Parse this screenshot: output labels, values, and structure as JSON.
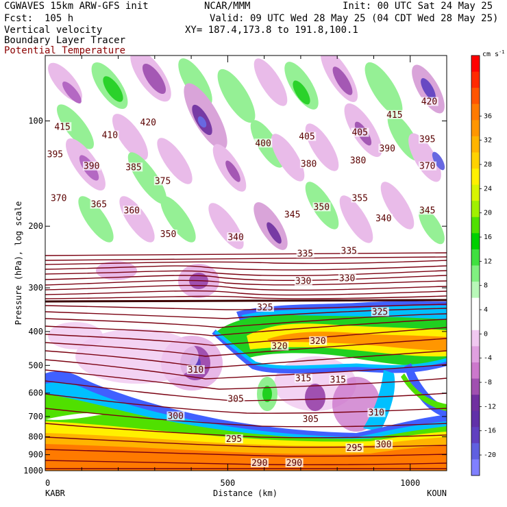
{
  "header": {
    "model": "CGWAVES 15km ARW-GFS init",
    "org": "NCAR/MMM",
    "init": "Init: 00 UTC Sat 24 May 25",
    "fcst": "Fcst:  105 h",
    "valid": "Valid: 09 UTC Wed 28 May 25 (04 CDT Wed 28 May 25)",
    "field1": "Vertical velocity",
    "field2": "Boundary Layer Tracer",
    "field3": "Potential Temperature",
    "xy": "XY= 187.4,173.8 to 191.8,100.1"
  },
  "colors": {
    "theta_contour": "#7a0010",
    "field3_text": "#8b0000"
  },
  "chart_data": {
    "type": "heatmap",
    "xlabel": "Distance (km)",
    "ylabel": "Pressure (hPa), log scale",
    "xlim": [
      0,
      1100
    ],
    "x_ticks": [
      "0",
      "500",
      "1000"
    ],
    "x_tick_values": [
      0,
      500,
      1000
    ],
    "y_scale": "log",
    "y_ticks": [
      "100",
      "200",
      "300",
      "400",
      "500",
      "600",
      "700",
      "800",
      "900",
      "1000"
    ],
    "y_tick_values": [
      100,
      200,
      300,
      400,
      500,
      600,
      700,
      800,
      900,
      1000
    ],
    "left_station": "KABR",
    "right_station": "KOUN",
    "colorbar": {
      "unit": "cm s",
      "unit_exp": "-1",
      "labels": [
        "36",
        "32",
        "28",
        "24",
        "20",
        "16",
        "12",
        "8",
        "4",
        "0",
        "-4",
        "-8",
        "-12",
        "-16",
        "-20"
      ],
      "colors": [
        "#ff0000",
        "#ff2a00",
        "#ff5500",
        "#ff7a00",
        "#ff9600",
        "#ffb400",
        "#ffd200",
        "#fff000",
        "#d8f500",
        "#a0f000",
        "#50e000",
        "#00d000",
        "#40e040",
        "#80f080",
        "#b8f8b8",
        "#ffffff",
        "#ffffff",
        "#f0c8f0",
        "#e0a0e0",
        "#cc78cc",
        "#a050b0",
        "#7030a0",
        "#6030a8",
        "#6040c0",
        "#6060e0",
        "#8080ff"
      ]
    },
    "theta_labels": [
      {
        "v": "415",
        "x": 25,
        "p": 105
      },
      {
        "v": "410",
        "x": 155,
        "p": 111
      },
      {
        "v": "420",
        "x": 260,
        "p": 102
      },
      {
        "v": "400",
        "x": 575,
        "p": 117
      },
      {
        "v": "405",
        "x": 695,
        "p": 112
      },
      {
        "v": "405",
        "x": 840,
        "p": 109
      },
      {
        "v": "415",
        "x": 935,
        "p": 97
      },
      {
        "v": "420",
        "x": 1030,
        "p": 89
      },
      {
        "v": "390",
        "x": 915,
        "p": 121
      },
      {
        "v": "395",
        "x": 1025,
        "p": 114
      },
      {
        "v": "395",
        "x": 5,
        "p": 126
      },
      {
        "v": "390",
        "x": 105,
        "p": 136
      },
      {
        "v": "385",
        "x": 220,
        "p": 137
      },
      {
        "v": "380",
        "x": 700,
        "p": 134
      },
      {
        "v": "380",
        "x": 835,
        "p": 131
      },
      {
        "v": "370",
        "x": 1025,
        "p": 136
      },
      {
        "v": "375",
        "x": 300,
        "p": 150
      },
      {
        "v": "370",
        "x": 15,
        "p": 168
      },
      {
        "v": "365",
        "x": 125,
        "p": 175
      },
      {
        "v": "360",
        "x": 215,
        "p": 182
      },
      {
        "v": "350",
        "x": 315,
        "p": 213
      },
      {
        "v": "355",
        "x": 840,
        "p": 168
      },
      {
        "v": "350",
        "x": 735,
        "p": 178
      },
      {
        "v": "345",
        "x": 655,
        "p": 187
      },
      {
        "v": "340",
        "x": 905,
        "p": 192
      },
      {
        "v": "345",
        "x": 1025,
        "p": 182
      },
      {
        "v": "340",
        "x": 500,
        "p": 217
      },
      {
        "v": "335",
        "x": 690,
        "p": 242
      },
      {
        "v": "335",
        "x": 810,
        "p": 238
      },
      {
        "v": "330",
        "x": 685,
        "p": 290
      },
      {
        "v": "330",
        "x": 805,
        "p": 285
      },
      {
        "v": "325",
        "x": 580,
        "p": 345
      },
      {
        "v": "325",
        "x": 895,
        "p": 355
      },
      {
        "v": "320",
        "x": 620,
        "p": 445
      },
      {
        "v": "320",
        "x": 725,
        "p": 430
      },
      {
        "v": "315",
        "x": 685,
        "p": 550
      },
      {
        "v": "315",
        "x": 780,
        "p": 555
      },
      {
        "v": "310",
        "x": 390,
        "p": 520
      },
      {
        "v": "310",
        "x": 885,
        "p": 690
      },
      {
        "v": "305",
        "x": 500,
        "p": 630
      },
      {
        "v": "305",
        "x": 705,
        "p": 720
      },
      {
        "v": "300",
        "x": 335,
        "p": 705
      },
      {
        "v": "300",
        "x": 905,
        "p": 850
      },
      {
        "v": "295",
        "x": 495,
        "p": 820
      },
      {
        "v": "295",
        "x": 825,
        "p": 870
      },
      {
        "v": "290",
        "x": 565,
        "p": 960
      },
      {
        "v": "290",
        "x": 660,
        "p": 960
      }
    ]
  }
}
